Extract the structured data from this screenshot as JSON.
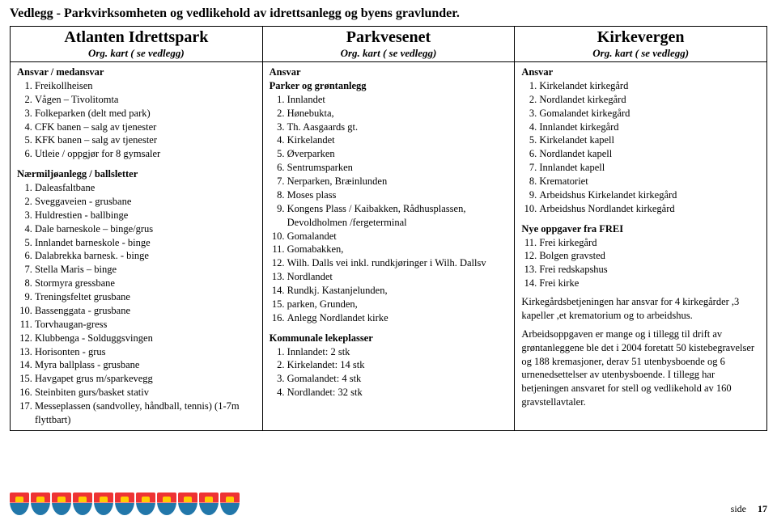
{
  "doc_title": "Vedlegg - Parkvirksomheten og vedlikehold av idrettsanlegg og byens gravlunder.",
  "columns": {
    "c1": {
      "header": "Atlanten Idrettspark",
      "sub": "Org. kart ( se vedlegg)"
    },
    "c2": {
      "header": "Parkvesenet",
      "sub": "Org. kart ( se vedlegg)"
    },
    "c3": {
      "header": "Kirkevergen",
      "sub": "Org. kart ( se vedlegg)"
    }
  },
  "col1": {
    "head1": "Ansvar / medansvar",
    "list1": [
      "Freikollheisen",
      "Vågen – Tivolitomta",
      "Folkeparken (delt med park)",
      "CFK banen – salg av tjenester",
      "KFK banen – salg av tjenester",
      "Utleie / oppgjør for 8 gymsaler"
    ],
    "head2": "Nærmiljøanlegg / ballsletter",
    "list2": [
      "Daleasfaltbane",
      "Sveggaveien - grusbane",
      "Huldrestien - ballbinge",
      "Dale barneskole – binge/grus",
      "Innlandet barneskole - binge",
      "Dalabrekka barnesk. - binge",
      "Stella Maris – binge",
      "Stormyra gressbane",
      "Treningsfeltet grusbane",
      "Bassenggata - grusbane",
      "Torvhaugan-gress",
      "Klubbenga - Solduggsvingen",
      "Horisonten - grus",
      "Myra ballplass - grusbane",
      "Havgapet grus m/sparkevegg",
      "Steinbiten gurs/basket stativ",
      "Messeplassen (sandvolley, håndball, tennis) (1-7m flyttbart)"
    ]
  },
  "col2": {
    "head1": "Ansvar",
    "head2": "Parker og grøntanlegg",
    "list1": [
      "Innlandet",
      "Hønebukta,",
      "Th. Aasgaards gt.",
      "Kirkelandet",
      "Øverparken",
      "Sentrumsparken",
      "Nerparken, Bræinlunden",
      "Moses plass",
      "Kongens Plass / Kaibakken, Rådhusplassen, Devoldholmen /fergeterminal",
      "Gomalandet",
      "Gomabakken,",
      "Wilh. Dalls vei inkl. rundkjøringer i Wilh. Dallsv",
      "Nordlandet",
      "Rundkj. Kastanjelunden,",
      "parken, Grunden,",
      "Anlegg Nordlandet kirke"
    ],
    "head3": "Kommunale lekeplasser",
    "list2": [
      "Innlandet: 2 stk",
      "Kirkelandet: 14 stk",
      "Gomalandet: 4 stk",
      "Nordlandet: 32 stk"
    ]
  },
  "col3": {
    "head1": "Ansvar",
    "list1": [
      "Kirkelandet kirkegård",
      "Nordlandet kirkegård",
      "Gomalandet kirkegård",
      "Innlandet kirkegård",
      "Kirkelandet kapell",
      "Nordlandet kapell",
      "Innlandet kapell",
      "Krematoriet",
      "Arbeidshus Kirkelandet kirkegård",
      "Arbeidshus Nordlandet kirkegård"
    ],
    "head2": "Nye oppgaver fra FREI",
    "list2": [
      "Frei kirkegård",
      "Bolgen gravsted",
      "Frei redskapshus",
      "Frei kirke"
    ],
    "para1": "Kirkegårdsbetjeningen har ansvar for 4 kirkegårder ,3 kapeller ,et krematorium og to arbeidshus.",
    "para2": "Arbeidsoppgaven er mange og i tillegg til drift av grøntanleggene ble det i 2004 foretatt 50 kistebegravelser og 188 kremasjoner, derav 51 utenbysboende og 6 urnenedsettelser av utenbysboende. I tillegg har betjeningen ansvaret for stell og vedlikehold av 160 gravstellavtaler."
  },
  "page_label": "side",
  "page_num": "17"
}
